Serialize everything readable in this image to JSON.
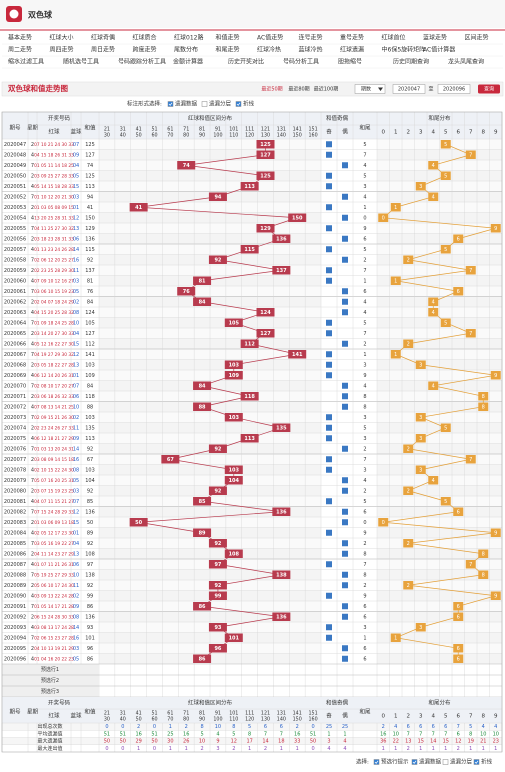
{
  "header": {
    "logo": "双色球"
  },
  "nav": [
    [
      "基本走势",
      "红球大小",
      "红球奇偶",
      "红球质合",
      "红球012路",
      "和值走势",
      "AC值走势",
      "连号走势",
      "重号走势",
      "红球首位",
      "蓝球走势",
      "区间走势"
    ],
    [
      "周二走势",
      "周四走势",
      "周日走势",
      "跨度走势",
      "尾数分布",
      "和尾走势",
      "红球冷热",
      "蓝球冷热",
      "红球遗漏",
      "中6保5旋转矩阵",
      "AC值计算器"
    ],
    [
      "缩水过滤工具",
      "随机选号工具",
      "号码跟踪分析工具",
      "金额计算器",
      "历史开奖对比",
      "号码分析工具",
      "胆拖缩号",
      "历史同期查询",
      "龙头凤尾查询"
    ]
  ],
  "toolbar": {
    "title": "双色球和值走势图",
    "quick": [
      "最近50期",
      "最近80期",
      "最近100期"
    ],
    "select": "期数",
    "from": "2020047",
    "sep": "至",
    "to": "2020096",
    "button": "查询"
  },
  "options": {
    "label": "标注形式选择:",
    "items": [
      {
        "label": "遗漏数据",
        "checked": true
      },
      {
        "label": "遗漏分层",
        "checked": false
      },
      {
        "label": "折线",
        "checked": true
      }
    ]
  },
  "table": {
    "headers": {
      "issue": "期号",
      "week": "星期",
      "draw": "开奖号码",
      "red": "红球",
      "blue": "蓝球",
      "sum": "和值",
      "zone_group": "红球和值区间分布",
      "parity_group": "和值奇偶",
      "parity": [
        "奇",
        "偶"
      ],
      "tail": "和尾",
      "tail_group": "和尾分布",
      "digits": [
        0,
        1,
        2,
        3,
        4,
        5,
        6,
        7,
        8,
        9
      ]
    },
    "zones": [
      [
        21,
        30
      ],
      [
        31,
        40
      ],
      [
        41,
        50
      ],
      [
        51,
        60
      ],
      [
        61,
        70
      ],
      [
        71,
        80
      ],
      [
        81,
        90
      ],
      [
        91,
        100
      ],
      [
        101,
        110
      ],
      [
        111,
        120
      ],
      [
        121,
        130
      ],
      [
        131,
        140
      ],
      [
        141,
        150
      ],
      [
        151,
        160
      ]
    ],
    "rows": [
      {
        "issue": "2020047",
        "week": 2,
        "red": "07 10 21 24 30 33",
        "blue": "07",
        "sum": 125,
        "tail": 5
      },
      {
        "issue": "2020048",
        "week": 4,
        "red": "04 15 18 26 31 33",
        "blue": "09",
        "sum": 127,
        "tail": 7
      },
      {
        "issue": "2020049",
        "week": 7,
        "red": "01 05 11 14 18 25",
        "blue": "04",
        "sum": 74,
        "tail": 4
      },
      {
        "issue": "2020050",
        "week": 2,
        "red": "03 09 25 27 28 33",
        "blue": "05",
        "sum": 125,
        "tail": 5
      },
      {
        "issue": "2020051",
        "week": 4,
        "red": "05 14 15 18 28 33",
        "blue": "15",
        "sum": 113,
        "tail": 3
      },
      {
        "issue": "2020052",
        "week": 7,
        "red": "01 10 12 20 21 30",
        "blue": "03",
        "sum": 94,
        "tail": 4
      },
      {
        "issue": "2020053",
        "week": 2,
        "red": "01 03 05 08 09 15",
        "blue": "01",
        "sum": 41,
        "tail": 1
      },
      {
        "issue": "2020054",
        "week": 4,
        "red": "13 20 25 28 31 33",
        "blue": "12",
        "sum": 150,
        "tail": 0
      },
      {
        "issue": "2020055",
        "week": 7,
        "red": "04 11 25 27 30 32",
        "blue": "13",
        "sum": 129,
        "tail": 9
      },
      {
        "issue": "2020056",
        "week": 2,
        "red": "03 18 23 28 31 33",
        "blue": "06",
        "sum": 136,
        "tail": 6
      },
      {
        "issue": "2020057",
        "week": 4,
        "red": "01 13 23 24 26 28",
        "blue": "14",
        "sum": 115,
        "tail": 5
      },
      {
        "issue": "2020058",
        "week": 7,
        "red": "02 06 12 20 25 27",
        "blue": "16",
        "sum": 92,
        "tail": 2
      },
      {
        "issue": "2020059",
        "week": 2,
        "red": "02 23 25 28 29 30",
        "blue": "11",
        "sum": 137,
        "tail": 7
      },
      {
        "issue": "2020060",
        "week": 4,
        "red": "07 09 10 12 16 27",
        "blue": "03",
        "sum": 81,
        "tail": 1
      },
      {
        "issue": "2020061",
        "week": 7,
        "red": "03 06 10 15 19 23",
        "blue": "05",
        "sum": 76,
        "tail": 6
      },
      {
        "issue": "2020062",
        "week": 2,
        "red": "02 04 07 18 24 29",
        "blue": "02",
        "sum": 84,
        "tail": 4
      },
      {
        "issue": "2020063",
        "week": 4,
        "red": "04 15 20 25 28 32",
        "blue": "08",
        "sum": 124,
        "tail": 4
      },
      {
        "issue": "2020064",
        "week": 7,
        "red": "01 09 18 24 25 28",
        "blue": "10",
        "sum": 105,
        "tail": 5
      },
      {
        "issue": "2020065",
        "week": 2,
        "red": "03 14 20 27 30 33",
        "blue": "04",
        "sum": 127,
        "tail": 7
      },
      {
        "issue": "2020066",
        "week": 4,
        "red": "05 12 16 22 27 30",
        "blue": "15",
        "sum": 112,
        "tail": 2
      },
      {
        "issue": "2020067",
        "week": 7,
        "red": "04 19 27 29 30 32",
        "blue": "12",
        "sum": 141,
        "tail": 1
      },
      {
        "issue": "2020068",
        "week": 2,
        "red": "03 05 18 22 27 28",
        "blue": "13",
        "sum": 103,
        "tail": 3
      },
      {
        "issue": "2020069",
        "week": 4,
        "red": "06 12 14 20 26 31",
        "blue": "01",
        "sum": 109,
        "tail": 9
      },
      {
        "issue": "2020070",
        "week": 7,
        "red": "02 08 10 17 20 27",
        "blue": "07",
        "sum": 84,
        "tail": 4
      },
      {
        "issue": "2020071",
        "week": 2,
        "red": "03 06 18 26 32 33",
        "blue": "06",
        "sum": 118,
        "tail": 8
      },
      {
        "issue": "2020072",
        "week": 4,
        "red": "07 08 13 14 21 25",
        "blue": "10",
        "sum": 88,
        "tail": 8
      },
      {
        "issue": "2020073",
        "week": 7,
        "red": "02 09 15 21 26 30",
        "blue": "02",
        "sum": 103,
        "tail": 3
      },
      {
        "issue": "2020074",
        "week": 2,
        "red": "02 23 24 26 27 33",
        "blue": "11",
        "sum": 135,
        "tail": 5
      },
      {
        "issue": "2020075",
        "week": 4,
        "red": "06 12 18 21 27 29",
        "blue": "09",
        "sum": 113,
        "tail": 3
      },
      {
        "issue": "2020076",
        "week": 7,
        "red": "01 03 13 20 24 31",
        "blue": "14",
        "sum": 92,
        "tail": 2
      },
      {
        "issue": "2020077",
        "week": 2,
        "red": "03 08 09 14 15 18",
        "blue": "16",
        "sum": 67,
        "tail": 7
      },
      {
        "issue": "2020078",
        "week": 4,
        "red": "02 10 15 22 24 30",
        "blue": "08",
        "sum": 103,
        "tail": 3
      },
      {
        "issue": "2020079",
        "week": 7,
        "red": "05 07 16 20 25 31",
        "blue": "05",
        "sum": 104,
        "tail": 4
      },
      {
        "issue": "2020080",
        "week": 2,
        "red": "03 07 15 19 23 25",
        "blue": "03",
        "sum": 92,
        "tail": 2
      },
      {
        "issue": "2020081",
        "week": 4,
        "red": "04 07 11 15 21 27",
        "blue": "07",
        "sum": 85,
        "tail": 5
      },
      {
        "issue": "2020082",
        "week": 7,
        "red": "07 15 24 28 29 33",
        "blue": "12",
        "sum": 136,
        "tail": 6
      },
      {
        "issue": "2020083",
        "week": 2,
        "red": "01 03 06 09 13 18",
        "blue": "15",
        "sum": 50,
        "tail": 0
      },
      {
        "issue": "2020084",
        "week": 4,
        "red": "02 05 12 17 23 30",
        "blue": "01",
        "sum": 89,
        "tail": 9
      },
      {
        "issue": "2020085",
        "week": 7,
        "red": "03 05 16 19 22 27",
        "blue": "04",
        "sum": 92,
        "tail": 2
      },
      {
        "issue": "2020086",
        "week": 2,
        "red": "04 11 14 23 27 29",
        "blue": "13",
        "sum": 108,
        "tail": 8
      },
      {
        "issue": "2020087",
        "week": 4,
        "red": "01 07 11 21 26 31",
        "blue": "06",
        "sum": 97,
        "tail": 7
      },
      {
        "issue": "2020088",
        "week": 7,
        "red": "05 19 25 27 29 33",
        "blue": "10",
        "sum": 138,
        "tail": 8
      },
      {
        "issue": "2020089",
        "week": 2,
        "red": "05 06 10 17 24 30",
        "blue": "11",
        "sum": 92,
        "tail": 2
      },
      {
        "issue": "2020090",
        "week": 4,
        "red": "03 09 13 22 24 28",
        "blue": "02",
        "sum": 99,
        "tail": 9
      },
      {
        "issue": "2020091",
        "week": 7,
        "red": "01 05 14 17 21 28",
        "blue": "09",
        "sum": 86,
        "tail": 6
      },
      {
        "issue": "2020092",
        "week": 2,
        "red": "06 15 24 28 30 33",
        "blue": "08",
        "sum": 136,
        "tail": 6
      },
      {
        "issue": "2020093",
        "week": 4,
        "red": "03 08 13 17 24 28",
        "blue": "14",
        "sum": 93,
        "tail": 3
      },
      {
        "issue": "2020094",
        "week": 7,
        "red": "02 06 15 23 27 28",
        "blue": "16",
        "sum": 101,
        "tail": 1
      },
      {
        "issue": "2020095",
        "week": 2,
        "red": "04 10 13 19 21 29",
        "blue": "03",
        "sum": 96,
        "tail": 6
      },
      {
        "issue": "2020096",
        "week": 4,
        "red": "01 04 16 20 22 23",
        "blue": "05",
        "sum": 86,
        "tail": 6
      }
    ],
    "preselect": [
      "预选行1",
      "预选行2",
      "预选行3"
    ],
    "stats": [
      {
        "label": "出现总次数",
        "values": [
          0,
          0,
          2,
          0,
          1,
          2,
          8,
          10,
          8,
          5,
          6,
          6,
          2,
          0,
          25,
          25,
          2,
          4,
          6,
          6,
          6,
          6,
          7,
          5,
          4,
          4
        ]
      },
      {
        "label": "平均遗漏值",
        "values": [
          51,
          51,
          16,
          51,
          25,
          16,
          5,
          4,
          5,
          8,
          7,
          7,
          16,
          51,
          1,
          1,
          16,
          10,
          7,
          7,
          7,
          7,
          6,
          8,
          10,
          10
        ]
      },
      {
        "label": "最大遗漏值",
        "values": [
          50,
          50,
          29,
          50,
          30,
          26,
          10,
          9,
          12,
          17,
          14,
          18,
          33,
          50,
          3,
          4,
          36,
          22,
          13,
          15,
          14,
          15,
          12,
          19,
          21,
          23
        ]
      },
      {
        "label": "最大连出值",
        "values": [
          0,
          0,
          1,
          0,
          1,
          1,
          2,
          3,
          2,
          1,
          2,
          1,
          1,
          0,
          4,
          4,
          1,
          1,
          2,
          1,
          1,
          1,
          2,
          1,
          1,
          1
        ]
      }
    ]
  },
  "footer": {
    "label": "选择:",
    "items": [
      {
        "label": "预选行提示",
        "checked": true
      },
      {
        "label": "遗漏数据",
        "checked": true
      },
      {
        "label": "遗漏分层",
        "checked": false
      },
      {
        "label": "折线",
        "checked": true
      }
    ]
  }
}
